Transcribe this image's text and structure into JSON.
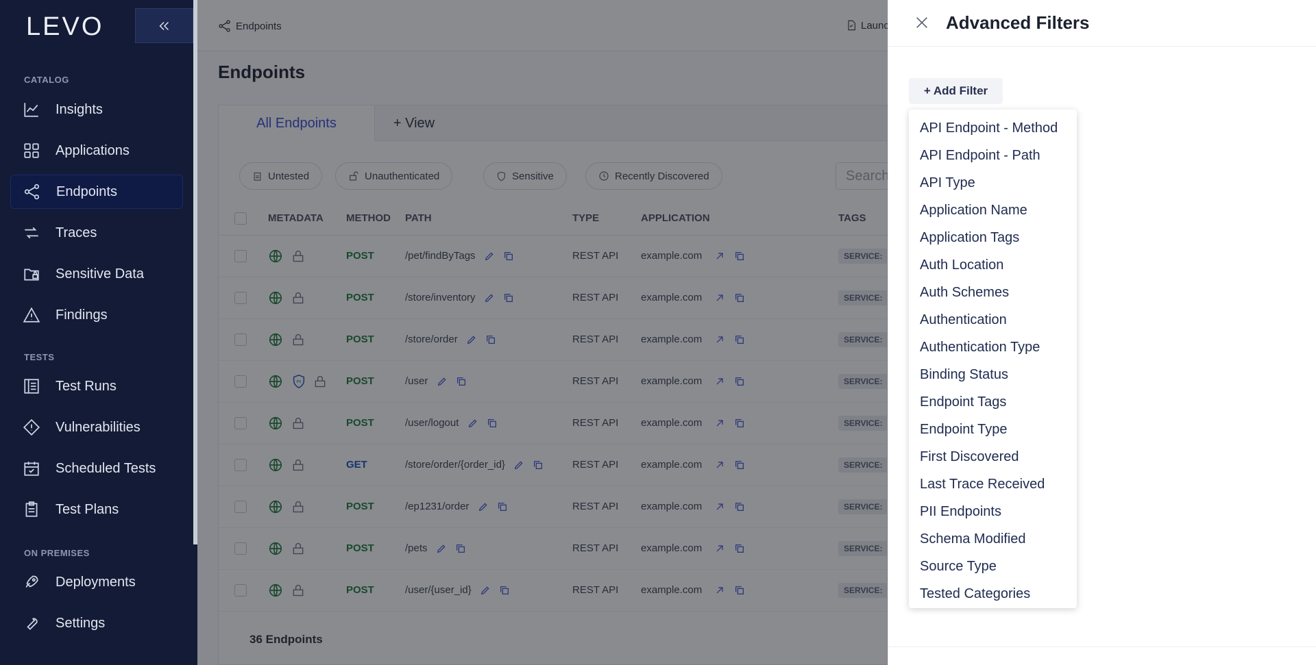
{
  "sidebar": {
    "logo": "LEVO",
    "sections": {
      "catalog": "CATALOG",
      "tests": "TESTS",
      "on_premises": "ON PREMISES"
    },
    "items": [
      {
        "label": "Insights",
        "icon": "chart-line-icon"
      },
      {
        "label": "Applications",
        "icon": "grid-icon"
      },
      {
        "label": "Endpoints",
        "icon": "endpoints-icon",
        "active": true
      },
      {
        "label": "Traces",
        "icon": "traces-icon"
      },
      {
        "label": "Sensitive Data",
        "icon": "folder-lock-icon"
      },
      {
        "label": "Findings",
        "icon": "warning-icon"
      },
      {
        "label": "Test Runs",
        "icon": "test-runs-icon"
      },
      {
        "label": "Vulnerabilities",
        "icon": "diamond-alert-icon"
      },
      {
        "label": "Scheduled Tests",
        "icon": "calendar-check-icon"
      },
      {
        "label": "Test Plans",
        "icon": "clipboard-icon"
      },
      {
        "label": "Deployments",
        "icon": "rocket-icon"
      },
      {
        "label": "Settings",
        "icon": "wrench-icon"
      }
    ]
  },
  "header": {
    "breadcrumb": "Endpoints",
    "launch": "Launc"
  },
  "main": {
    "title": "Endpoints",
    "tabs": [
      {
        "label": "All Endpoints"
      },
      {
        "label": "+ View"
      }
    ],
    "chips": [
      "Untested",
      "Unauthenticated",
      "Sensitive",
      "Recently Discovered"
    ],
    "search_placeholder": "Search",
    "columns": [
      "METADATA",
      "METHOD",
      "PATH",
      "TYPE",
      "APPLICATION",
      "TAGS"
    ],
    "rows": [
      {
        "method": "POST",
        "path": "/pet/findByTags",
        "type": "REST API",
        "application": "example.com",
        "tag": "SERVICE:",
        "pii": false
      },
      {
        "method": "POST",
        "path": "/store/inventory",
        "type": "REST API",
        "application": "example.com",
        "tag": "SERVICE:",
        "pii": false
      },
      {
        "method": "POST",
        "path": "/store/order",
        "type": "REST API",
        "application": "example.com",
        "tag": "SERVICE:",
        "pii": false
      },
      {
        "method": "POST",
        "path": "/user",
        "type": "REST API",
        "application": "example.com",
        "tag": "SERVICE:",
        "pii": true
      },
      {
        "method": "POST",
        "path": "/user/logout",
        "type": "REST API",
        "application": "example.com",
        "tag": "SERVICE:",
        "pii": false
      },
      {
        "method": "GET",
        "path": "/store/order/{order_id}",
        "type": "REST API",
        "application": "example.com",
        "tag": "SERVICE:",
        "pii": false
      },
      {
        "method": "POST",
        "path": "/ep1231/order",
        "type": "REST API",
        "application": "example.com",
        "tag": "SERVICE:",
        "pii": false
      },
      {
        "method": "POST",
        "path": "/pets",
        "type": "REST API",
        "application": "example.com",
        "tag": "SERVICE:",
        "pii": false
      },
      {
        "method": "POST",
        "path": "/user/{user_id}",
        "type": "REST API",
        "application": "example.com",
        "tag": "SERVICE:",
        "pii": false
      }
    ],
    "count_label": "36 Endpoints"
  },
  "drawer": {
    "title": "Advanced Filters",
    "add_filter": "+ Add Filter",
    "options": [
      "API Endpoint - Method",
      "API Endpoint - Path",
      "API Type",
      "Application Name",
      "Application Tags",
      "Auth Location",
      "Auth Schemes",
      "Authentication",
      "Authentication Type",
      "Binding Status",
      "Endpoint Tags",
      "Endpoint Type",
      "First Discovered",
      "Last Trace Received",
      "PII Endpoints",
      "Schema Modified",
      "Source Type",
      "Tested Categories"
    ]
  },
  "colors": {
    "sidebar_bg": "#131b36",
    "accent": "#3a4bd0",
    "post": "#1f7a3a",
    "get": "#1d4fb8"
  }
}
